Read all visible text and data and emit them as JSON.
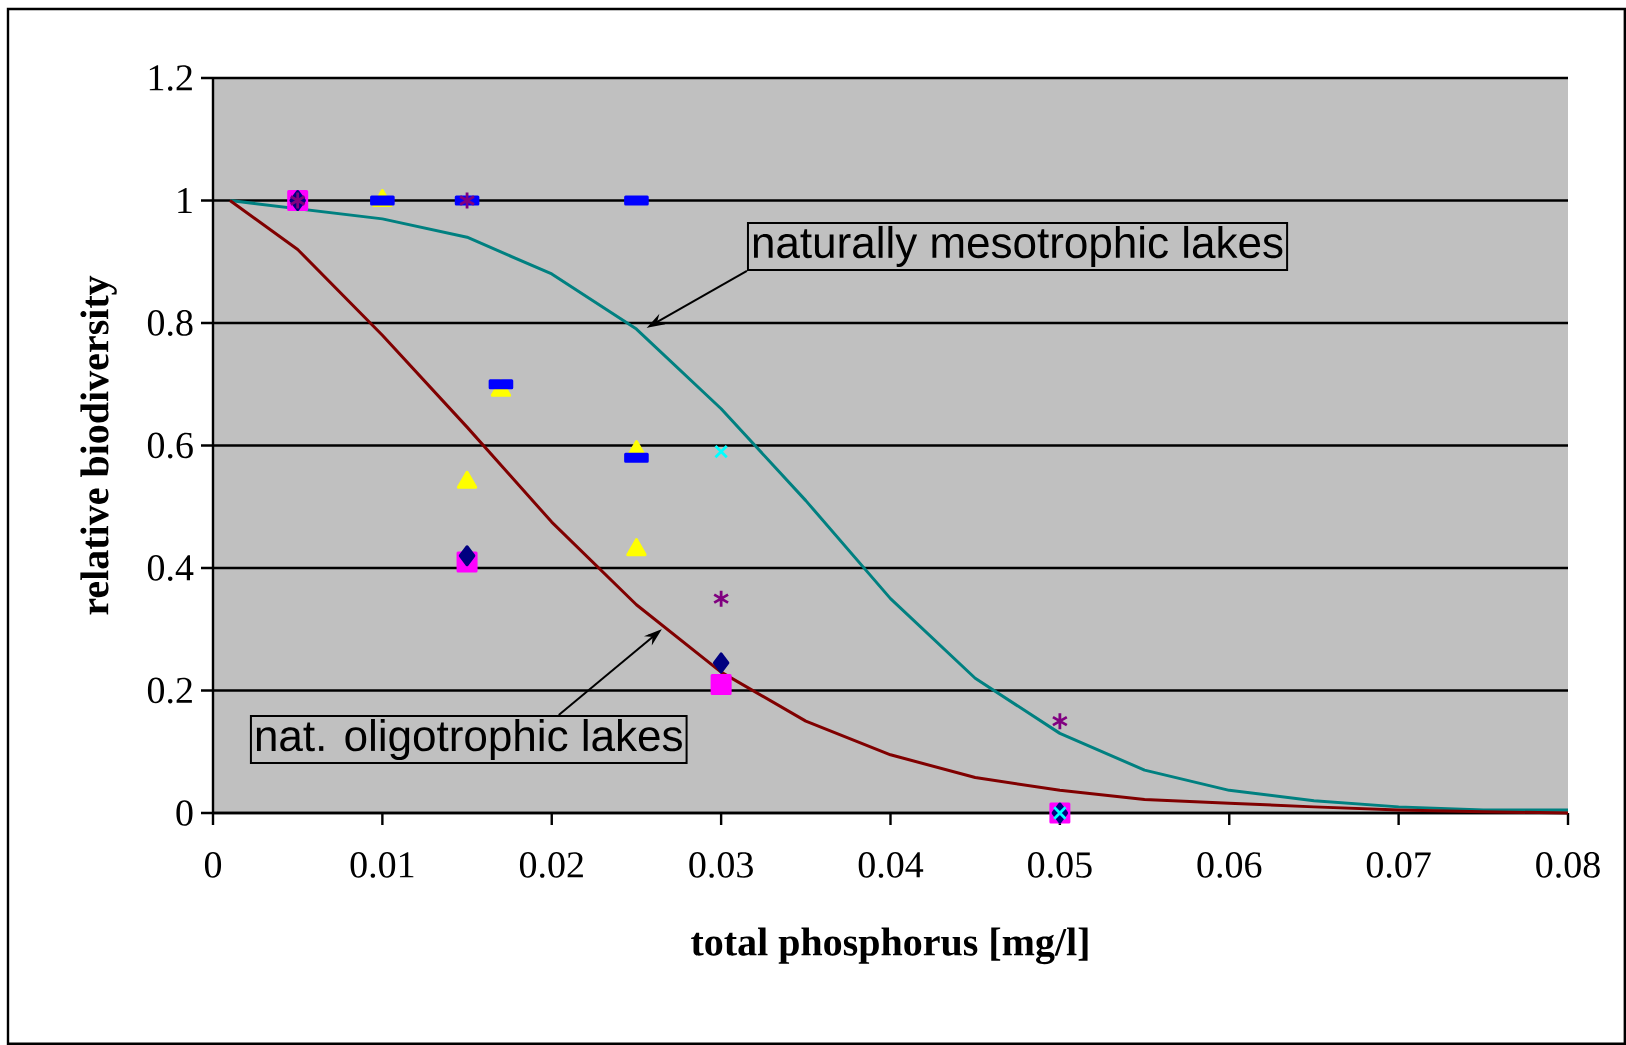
{
  "chart_data": {
    "type": "scatter",
    "xlabel": "total phosphorus [mg/l]",
    "ylabel": "relative biodiversity",
    "xlim": [
      0,
      0.08
    ],
    "ylim": [
      0,
      1.2
    ],
    "xticks": [
      0,
      0.01,
      0.02,
      0.03,
      0.04,
      0.05,
      0.06,
      0.07,
      0.08
    ],
    "yticks": [
      0,
      0.2,
      0.4,
      0.6,
      0.8,
      1,
      1.2
    ],
    "grid": "y",
    "annotations": [
      "naturally mesotrophic lakes",
      {
        "text": "nat. oligotrophic lakes",
        "x": 0.0265,
        "y": 0.3
      }
    ],
    "series": [
      {
        "type": "line",
        "marker": "none",
        "color": "#008080",
        "x": [
          0.001,
          0.01,
          0.015,
          0.02,
          0.025,
          0.03,
          0.035,
          0.04,
          0.045,
          0.05,
          0.055,
          0.06,
          0.065,
          0.07,
          0.075,
          0.08
        ],
        "values": [
          1.0,
          0.97,
          0.94,
          0.88,
          0.79,
          0.66,
          0.51,
          0.35,
          0.22,
          0.13,
          0.07,
          0.037,
          0.02,
          0.01,
          0.005,
          0.005
        ]
      },
      {
        "type": "line",
        "marker": "none",
        "color": "#800000",
        "x": [
          0.001,
          0.005,
          0.01,
          0.015,
          0.02,
          0.025,
          0.03,
          0.035,
          0.04,
          0.045,
          0.05,
          0.055,
          0.06,
          0.065,
          0.07,
          0.075,
          0.08
        ],
        "values": [
          1.0,
          0.92,
          0.78,
          0.63,
          0.475,
          0.34,
          0.23,
          0.15,
          0.095,
          0.058,
          0.037,
          0.022,
          0.016,
          0.01,
          0.005,
          0.002,
          0.0
        ]
      },
      {
        "marker": "square",
        "color": "#ff00ff",
        "x": [
          0.005,
          0.015,
          0.03,
          0.05
        ],
        "values": [
          1.0,
          0.41,
          0.21,
          0.0
        ]
      },
      {
        "marker": "diamond",
        "color": "#000080",
        "x": [
          0.005,
          0.015,
          0.03,
          0.05
        ],
        "values": [
          1.0,
          0.42,
          0.245,
          0.0
        ]
      },
      {
        "marker": "triangle",
        "color": "#ffff00",
        "x": [
          0.01,
          0.015,
          0.017,
          0.025,
          0.025
        ],
        "values": [
          1.0,
          0.54,
          0.69,
          0.59,
          0.43
        ]
      },
      {
        "marker": "square",
        "color": "#0000ff",
        "x": [
          0.01,
          0.015,
          0.017,
          0.025,
          0.025
        ],
        "values": [
          1.0,
          1.0,
          0.7,
          1.0,
          0.58
        ]
      },
      {
        "marker": "cross",
        "color": "#00ffff",
        "x": [
          0.03,
          0.05
        ],
        "values": [
          0.59,
          0.0
        ]
      },
      {
        "marker": "cross",
        "color": "#800080",
        "x": [
          0.005,
          0.015,
          0.03,
          0.05
        ],
        "values": [
          1.0,
          1.0,
          0.35,
          0.15
        ]
      }
    ]
  }
}
